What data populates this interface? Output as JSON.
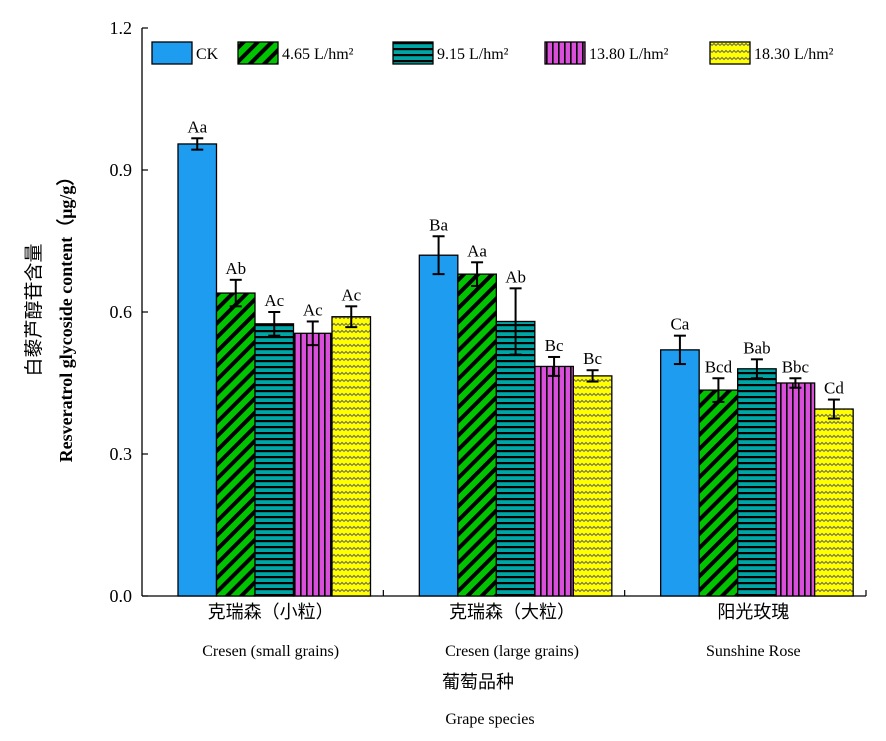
{
  "chart_data": {
    "type": "bar",
    "xlabel_cn": "葡萄品种",
    "xlabel_en": "Grape species",
    "ylabel_cn": "白藜芦醇苷含量",
    "ylabel_en": "Resveratrol glycoside content（μg/g）",
    "ylim": [
      0,
      1.2
    ],
    "yticks": [
      "0.0",
      "0.3",
      "0.6",
      "0.9",
      "1.2"
    ],
    "categories": [
      {
        "cn": "克瑞森（小粒）",
        "en": "Cresen (small grains)"
      },
      {
        "cn": "克瑞森（大粒）",
        "en": "Cresen (large grains)"
      },
      {
        "cn": "阳光玫瑰",
        "en": "Sunshine Rose"
      }
    ],
    "legend_position": "top",
    "series": [
      {
        "name": "CK",
        "color": "#1e9cf0",
        "pattern": "solid",
        "values": [
          0.955,
          0.72,
          0.52
        ],
        "errors": [
          0.012,
          0.04,
          0.03
        ],
        "labels": [
          "Aa",
          "Ba",
          "Ca"
        ]
      },
      {
        "name": "4.65 L/hm²",
        "color": "#00c400",
        "pattern": "diagonal",
        "values": [
          0.64,
          0.68,
          0.435
        ],
        "errors": [
          0.028,
          0.025,
          0.025
        ],
        "labels": [
          "Ab",
          "Aa",
          "Bcd"
        ]
      },
      {
        "name": "9.15 L/hm²",
        "color": "#00a6a6",
        "pattern": "horizontal",
        "values": [
          0.575,
          0.58,
          0.48
        ],
        "errors": [
          0.025,
          0.07,
          0.02
        ],
        "labels": [
          "Ac",
          "Ab",
          "Bab"
        ]
      },
      {
        "name": "13.80 L/hm²",
        "color": "#d94fd9",
        "pattern": "vertical",
        "values": [
          0.555,
          0.485,
          0.45
        ],
        "errors": [
          0.025,
          0.02,
          0.01
        ],
        "labels": [
          "Ac",
          "Bc",
          "Bbc"
        ]
      },
      {
        "name": "18.30 L/hm²",
        "color": "#ffff00",
        "pattern": "wave",
        "values": [
          0.59,
          0.465,
          0.395
        ],
        "errors": [
          0.022,
          0.012,
          0.02
        ],
        "labels": [
          "Ac",
          "Bc",
          "Cd"
        ]
      }
    ]
  }
}
